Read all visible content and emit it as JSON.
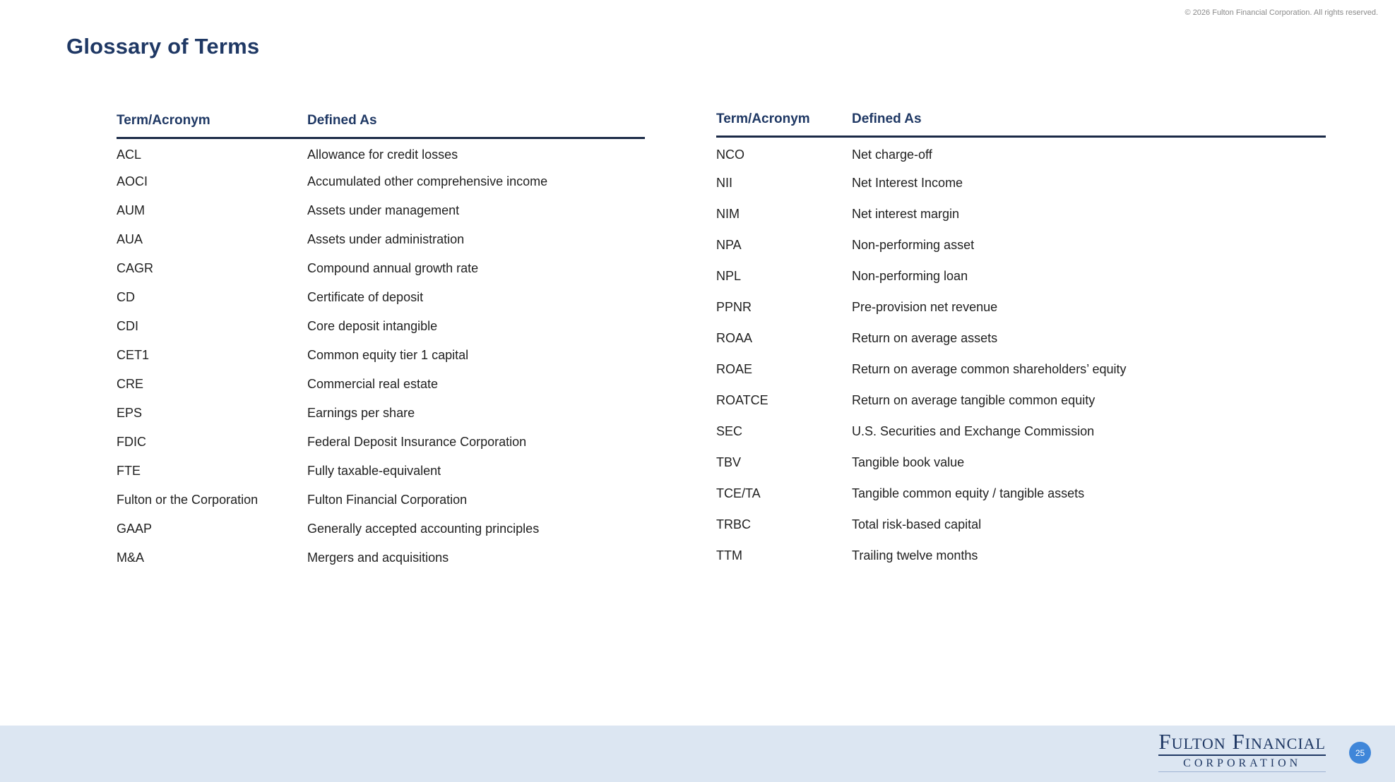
{
  "header": {
    "copyright": "© 2026 Fulton Financial Corporation. All rights reserved.",
    "title": "Glossary of Terms"
  },
  "tables": [
    {
      "columns": [
        "Term/Acronym",
        "Defined As"
      ],
      "rows": [
        [
          "ACL",
          "Allowance for credit losses"
        ],
        [
          "AOCI",
          "Accumulated other comprehensive income"
        ],
        [
          "AUM",
          "Assets under management"
        ],
        [
          "AUA",
          "Assets under administration"
        ],
        [
          "CAGR",
          "Compound annual growth rate"
        ],
        [
          "CD",
          "Certificate of deposit"
        ],
        [
          "CDI",
          "Core deposit intangible"
        ],
        [
          "CET1",
          "Common equity tier 1 capital"
        ],
        [
          "CRE",
          "Commercial real estate"
        ],
        [
          "EPS",
          "Earnings per share"
        ],
        [
          "FDIC",
          "Federal Deposit Insurance Corporation"
        ],
        [
          "FTE",
          "Fully taxable-equivalent"
        ],
        [
          "Fulton or the Corporation",
          "Fulton Financial Corporation"
        ],
        [
          "GAAP",
          "Generally accepted accounting principles"
        ],
        [
          "M&A",
          "Mergers and acquisitions"
        ]
      ]
    },
    {
      "columns": [
        "Term/Acronym",
        "Defined As"
      ],
      "rows": [
        [
          "NCO",
          "Net charge-off"
        ],
        [
          "NII",
          "Net Interest Income"
        ],
        [
          "NIM",
          "Net interest margin"
        ],
        [
          "NPA",
          "Non-performing asset"
        ],
        [
          "NPL",
          "Non-performing loan"
        ],
        [
          "PPNR",
          "Pre-provision net revenue"
        ],
        [
          "ROAA",
          "Return on average assets"
        ],
        [
          "ROAE",
          "Return on average common shareholders’ equity"
        ],
        [
          "ROATCE",
          "Return on average tangible common equity"
        ],
        [
          "SEC",
          "U.S. Securities and Exchange Commission"
        ],
        [
          "TBV",
          "Tangible book value"
        ],
        [
          "TCE/TA",
          "Tangible common equity / tangible assets"
        ],
        [
          "TRBC",
          "Total risk-based capital"
        ],
        [
          "TTM",
          "Trailing twelve months"
        ]
      ]
    }
  ],
  "footer": {
    "logo_line1": "Fulton Financial",
    "logo_line2": "CORPORATION",
    "page_number": "25"
  },
  "colors": {
    "brand_blue": "#1f3864",
    "header_rule": "#1b2a47",
    "body_text": "#212121",
    "footer_band": "#dce6f2",
    "page_badge": "#3f86d9"
  }
}
